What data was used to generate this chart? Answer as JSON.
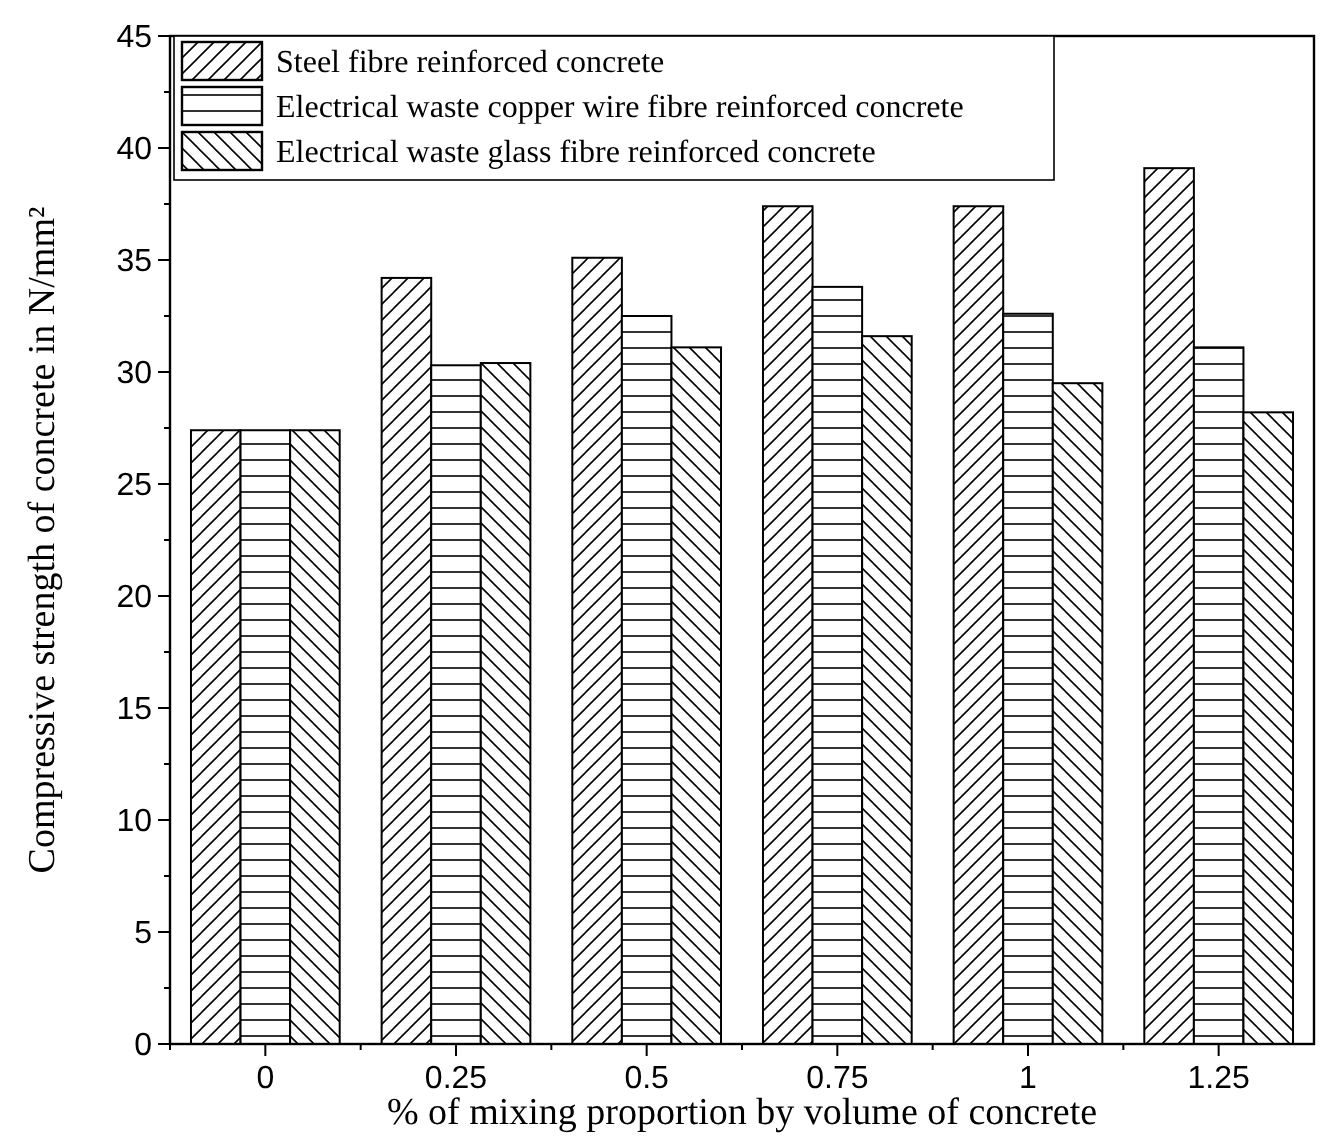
{
  "chart_data": {
    "type": "bar",
    "xlabel": "% of mixing proportion by volume of concrete",
    "ylabel": "Compressive  strength of concrete in N/mm²",
    "categories": [
      "0",
      "0.25",
      "0.5",
      "0.75",
      "1",
      "1.25"
    ],
    "series": [
      {
        "name": "Steel fibre reinforced concrete",
        "color": "#000000",
        "values": [
          27.4,
          34.2,
          35.1,
          37.4,
          37.4,
          39.1
        ]
      },
      {
        "name": "Electrical waste copper wire fibre reinforced concrete",
        "color": "#000000",
        "values": [
          27.4,
          30.3,
          32.5,
          33.8,
          32.6,
          31.1
        ]
      },
      {
        "name": "Electrical waste glass fibre reinforced concrete",
        "color": "#000000",
        "values": [
          27.4,
          30.4,
          31.1,
          31.6,
          29.5,
          28.2
        ]
      }
    ],
    "ylim": [
      0,
      45
    ],
    "yticks": [
      0,
      5,
      10,
      15,
      20,
      25,
      30,
      35,
      40,
      45
    ],
    "legend": "top left",
    "grid": false
  }
}
